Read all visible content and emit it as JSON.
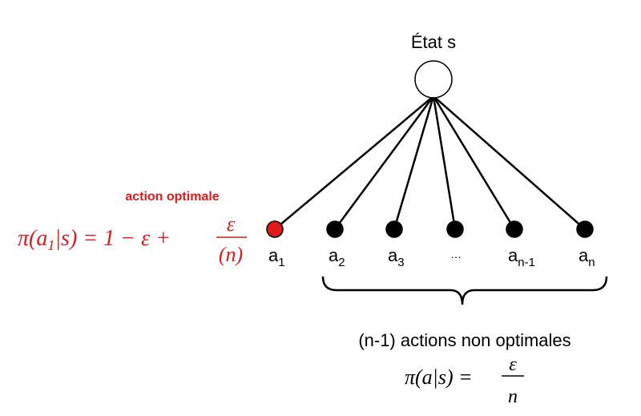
{
  "state": {
    "label": "État s"
  },
  "optimal": {
    "tag": "action optimale",
    "formula": {
      "lhs": "π(a",
      "sub": "1",
      "rhs": "|s) = 1 − ε +",
      "num": "ε",
      "den": "(n)"
    },
    "color": "#e0191b"
  },
  "actions": [
    {
      "base": "a",
      "sub": "1",
      "optimal": true
    },
    {
      "base": "a",
      "sub": "2",
      "optimal": false
    },
    {
      "base": "a",
      "sub": "3",
      "optimal": false
    },
    {
      "base": "…",
      "sub": "",
      "optimal": false
    },
    {
      "base": "a",
      "sub": "n-1",
      "optimal": false
    },
    {
      "base": "a",
      "sub": "n",
      "optimal": false
    }
  ],
  "non_optimal": {
    "caption": "(n-1) actions non optimales",
    "formula": {
      "lhs": "π(a|s) =",
      "num": "ε",
      "den": "n"
    }
  },
  "colors": {
    "node": "#000000",
    "optimal_node": "#e0191b",
    "line": "#000000"
  }
}
